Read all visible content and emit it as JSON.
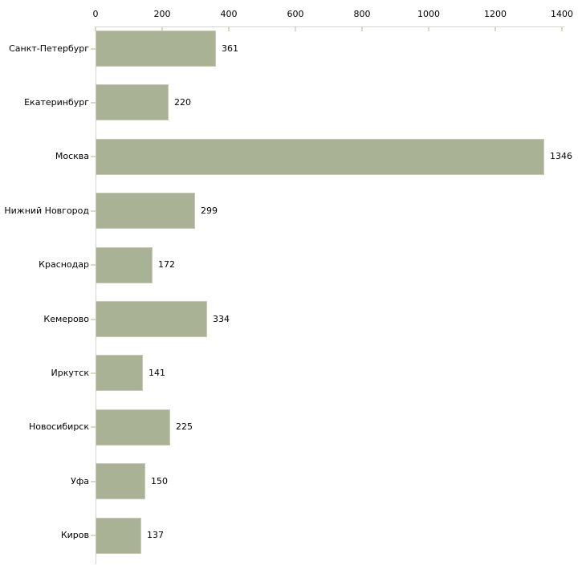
{
  "chart_data": {
    "type": "bar",
    "orientation": "horizontal",
    "categories": [
      "Санкт-Петербург",
      "Екатеринбург",
      "Москва",
      "Нижний Новгород",
      "Краснодар",
      "Кемерово",
      "Иркутск",
      "Новосибирск",
      "Уфа",
      "Киров"
    ],
    "values": [
      361,
      220,
      1346,
      299,
      172,
      334,
      141,
      225,
      150,
      137
    ],
    "value_labels": [
      "361",
      "220",
      "1346",
      "299",
      "172",
      "334",
      "141",
      "225",
      "150",
      "137"
    ],
    "x_ticks": [
      0,
      200,
      400,
      600,
      800,
      1000,
      1200,
      1400
    ],
    "x_tick_labels": [
      "0",
      "200",
      "400",
      "600",
      "800",
      "1000",
      "1200",
      "1400"
    ],
    "xlim": [
      0,
      1400
    ],
    "title": "",
    "xlabel": "",
    "ylabel": "",
    "grid": false,
    "legend": false,
    "axis_position": "top",
    "colors": {
      "bar_fill": "#aab296",
      "bar_border": "#c6cab6",
      "axis_line": "#d4d4d4",
      "tick_mark": "#d8dcba",
      "text": "#000000",
      "background": "#ffffff"
    }
  }
}
